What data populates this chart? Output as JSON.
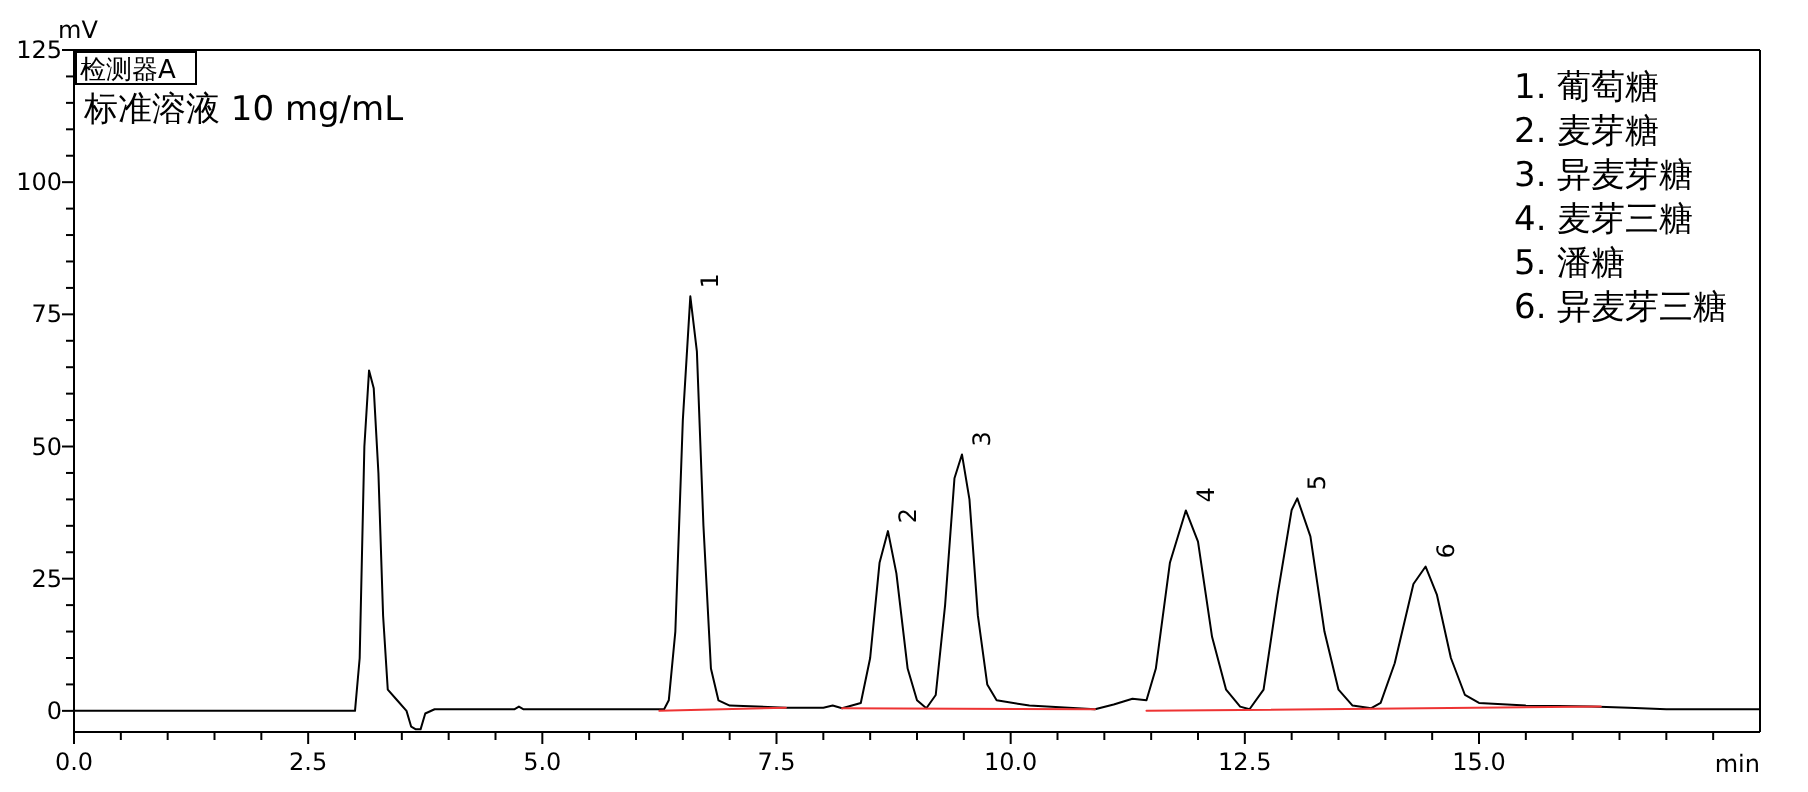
{
  "chart_data": {
    "type": "line",
    "title": "标准溶液 10 mg/mL",
    "xlabel": "min",
    "ylabel": "mV",
    "xlim": [
      0,
      18
    ],
    "ylim": [
      -4,
      125
    ],
    "xticks": [
      {
        "value": 0,
        "label": "0.0"
      },
      {
        "value": 0.5,
        "label": null
      },
      {
        "value": 1,
        "label": null
      },
      {
        "value": 1.5,
        "label": null
      },
      {
        "value": 2,
        "label": null
      },
      {
        "value": 2.5,
        "label": "2.5"
      },
      {
        "value": 3,
        "label": null
      },
      {
        "value": 3.5,
        "label": null
      },
      {
        "value": 4,
        "label": null
      },
      {
        "value": 4.5,
        "label": null
      },
      {
        "value": 5,
        "label": "5.0"
      },
      {
        "value": 5.5,
        "label": null
      },
      {
        "value": 6,
        "label": null
      },
      {
        "value": 6.5,
        "label": null
      },
      {
        "value": 7,
        "label": null
      },
      {
        "value": 7.5,
        "label": "7.5"
      },
      {
        "value": 8,
        "label": null
      },
      {
        "value": 8.5,
        "label": null
      },
      {
        "value": 9,
        "label": null
      },
      {
        "value": 9.5,
        "label": null
      },
      {
        "value": 10,
        "label": "10.0"
      },
      {
        "value": 10.5,
        "label": null
      },
      {
        "value": 11,
        "label": null
      },
      {
        "value": 11.5,
        "label": null
      },
      {
        "value": 12,
        "label": null
      },
      {
        "value": 12.5,
        "label": "12.5"
      },
      {
        "value": 13,
        "label": null
      },
      {
        "value": 13.5,
        "label": null
      },
      {
        "value": 14,
        "label": null
      },
      {
        "value": 14.5,
        "label": null
      },
      {
        "value": 15,
        "label": "15.0"
      },
      {
        "value": 15.5,
        "label": null
      },
      {
        "value": 16,
        "label": null
      },
      {
        "value": 16.5,
        "label": null
      },
      {
        "value": 17,
        "label": null
      },
      {
        "value": 17.5,
        "label": null
      }
    ],
    "yticks": [
      0,
      {
        "value": 5,
        "label": null
      },
      {
        "value": 10,
        "label": null
      },
      {
        "value": 15,
        "label": null
      },
      {
        "value": 20,
        "label": null
      },
      25,
      {
        "value": 30,
        "label": null
      },
      {
        "value": 35,
        "label": null
      },
      {
        "value": 40,
        "label": null
      },
      {
        "value": 45,
        "label": null
      },
      50,
      {
        "value": 55,
        "label": null
      },
      {
        "value": 60,
        "label": null
      },
      {
        "value": 65,
        "label": null
      },
      {
        "value": 70,
        "label": null
      },
      75,
      {
        "value": 80,
        "label": null
      },
      {
        "value": 85,
        "label": null
      },
      {
        "value": 90,
        "label": null
      },
      {
        "value": 95,
        "label": null
      },
      100,
      {
        "value": 105,
        "label": null
      },
      {
        "value": 110,
        "label": null
      },
      {
        "value": 115,
        "label": null
      },
      {
        "value": 120,
        "label": null
      },
      125
    ],
    "grid": false,
    "series": [
      {
        "color": "#000000",
        "x": [
          0,
          3.0,
          3.05,
          3.1,
          3.15,
          3.2,
          3.25,
          3.3,
          3.35,
          3.45,
          3.55,
          3.6,
          3.65,
          3.7,
          3.75,
          3.85,
          4.7,
          4.75,
          4.8,
          6.3,
          6.35,
          6.42,
          6.5,
          6.58,
          6.65,
          6.72,
          6.8,
          6.88,
          7.0,
          7.6,
          8.0,
          8.1,
          8.2,
          8.4,
          8.5,
          8.6,
          8.69,
          8.78,
          8.9,
          9.0,
          9.1,
          9.2,
          9.3,
          9.4,
          9.48,
          9.56,
          9.65,
          9.75,
          9.85,
          10.2,
          10.9,
          11.1,
          11.3,
          11.45,
          11.55,
          11.7,
          11.87,
          12.0,
          12.15,
          12.3,
          12.45,
          12.55,
          12.7,
          12.85,
          13.0,
          13.06,
          13.2,
          13.35,
          13.5,
          13.65,
          13.85,
          13.95,
          14.1,
          14.3,
          14.43,
          14.55,
          14.7,
          14.85,
          15.0,
          15.5,
          16.2,
          16.6,
          17,
          18
        ],
        "values": [
          0,
          0,
          10,
          50,
          64.4,
          61,
          45,
          18,
          4,
          2,
          0,
          -3,
          -3.5,
          -3.5,
          -0.5,
          0.3,
          0.3,
          0.8,
          0.3,
          0.3,
          2,
          15,
          55,
          78.4,
          68,
          35,
          8,
          2,
          1,
          0.6,
          0.6,
          1,
          0.5,
          1.5,
          10,
          28,
          34,
          26,
          8,
          2,
          0.5,
          3,
          20,
          44,
          48.5,
          40,
          18,
          5,
          2,
          1,
          0.3,
          1.2,
          2.3,
          2,
          8,
          28,
          37.9,
          32,
          14,
          4,
          0.8,
          0.3,
          4,
          22,
          38,
          40.2,
          33,
          15,
          4,
          1,
          0.5,
          1.5,
          9,
          24,
          27.3,
          22,
          10,
          3,
          1.5,
          1,
          0.8,
          0.6,
          0.3,
          0.3
        ]
      },
      {
        "color": "#ee3333",
        "x": [
          6.25,
          7.6
        ],
        "values": [
          0,
          0.6
        ]
      },
      {
        "color": "#ee3333",
        "x": [
          8.2,
          10.9
        ],
        "values": [
          0.5,
          0.3
        ]
      },
      {
        "color": "#ee3333",
        "x": [
          11.45,
          16.3
        ],
        "values": [
          0,
          0.8
        ]
      }
    ],
    "annotations": [
      "检测器A",
      "1. 葡萄糖",
      "2. 麦芽糖",
      "3. 异麦芽糖",
      "4. 麦芽三糖",
      "5. 潘糖",
      "6. 异麦芽三糖",
      {
        "text": "1",
        "x": 6.58,
        "y": 78.4
      },
      {
        "text": "2",
        "x": 8.69,
        "y": 34
      },
      {
        "text": "3",
        "x": 9.48,
        "y": 48.5
      },
      {
        "text": "4",
        "x": 11.87,
        "y": 37.9
      },
      {
        "text": "5",
        "x": 13.06,
        "y": 40.2
      },
      {
        "text": "6",
        "x": 14.43,
        "y": 27.3
      }
    ]
  }
}
